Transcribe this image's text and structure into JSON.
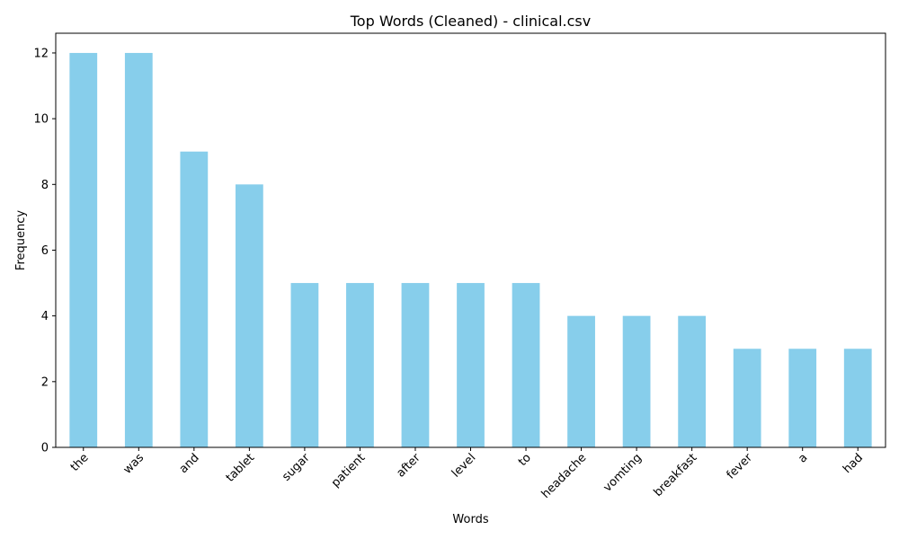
{
  "chart_data": {
    "type": "bar",
    "title": "Top Words (Cleaned) - clinical.csv",
    "xlabel": "Words",
    "ylabel": "Frequency",
    "categories": [
      "the",
      "was",
      "and",
      "tablet",
      "sugar",
      "patient",
      "after",
      "level",
      "to",
      "headache",
      "vomting",
      "breakfast",
      "fever",
      "a",
      "had"
    ],
    "values": [
      12,
      12,
      9,
      8,
      5,
      5,
      5,
      5,
      5,
      4,
      4,
      4,
      3,
      3,
      3
    ],
    "ylim": [
      0,
      12.6
    ],
    "yticks": [
      0,
      2,
      4,
      6,
      8,
      10,
      12
    ],
    "bar_color": "#87ceeb",
    "grid": false,
    "legend": "none",
    "xtick_rotation_deg": 45
  }
}
